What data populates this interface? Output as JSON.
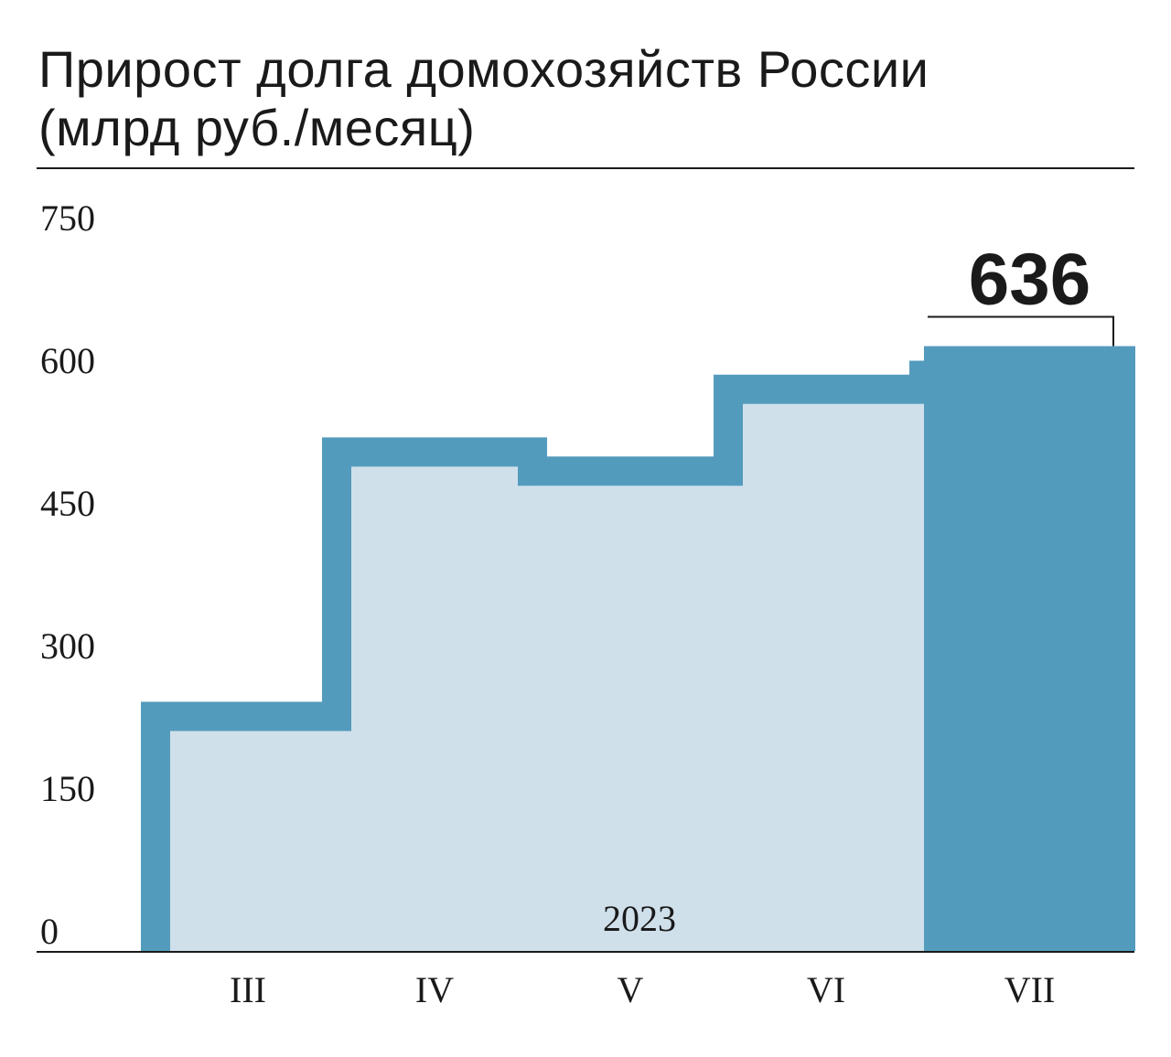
{
  "title": {
    "line1": "Прирост долга домохозяйств России",
    "line2": "(млрд руб./месяц)"
  },
  "colors": {
    "bar_fill": "#cfe0eb",
    "bar_accent": "#539bbd",
    "text": "#1a1a1a"
  },
  "chart_data": {
    "type": "bar",
    "title": "Прирост долга домохозяйств России (млрд руб./месяц)",
    "categories": [
      "III",
      "IV",
      "V",
      "VI",
      "VII"
    ],
    "values": [
      262,
      540,
      520,
      606,
      636
    ],
    "year_label": "2023",
    "ylim": [
      0,
      750
    ],
    "yticks": [
      "0",
      "150",
      "300",
      "450",
      "600",
      "750"
    ],
    "highlight_label": "636",
    "grid": false
  }
}
